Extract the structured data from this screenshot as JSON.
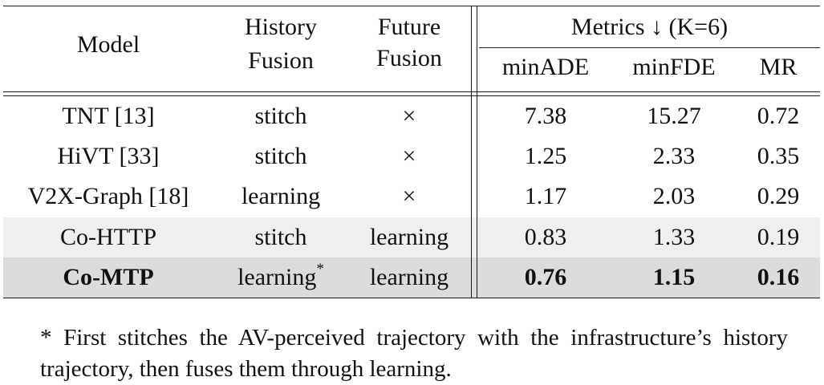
{
  "table": {
    "headers": {
      "model": "Model",
      "history_fusion_line1": "History",
      "history_fusion_line2": "Fusion",
      "future_fusion_line1": "Future",
      "future_fusion_line2": "Fusion",
      "metrics_group": "Metrics ↓ (K=6)",
      "min_ade": "minADE",
      "min_fde": "minFDE",
      "mr": "MR"
    },
    "rows": [
      {
        "model": "TNT [13]",
        "history": "stitch",
        "future": "×",
        "min_ade": "7.38",
        "min_fde": "15.27",
        "mr": "0.72"
      },
      {
        "model": "HiVT [33]",
        "history": "stitch",
        "future": "×",
        "min_ade": "1.25",
        "min_fde": "2.33",
        "mr": "0.35"
      },
      {
        "model": "V2X-Graph [18]",
        "history": "learning",
        "future": "×",
        "min_ade": "1.17",
        "min_fde": "2.03",
        "mr": "0.29"
      },
      {
        "model": "Co-HTTP",
        "history": "stitch",
        "future": "learning",
        "min_ade": "0.83",
        "min_fde": "1.33",
        "mr": "0.19"
      },
      {
        "model": "Co-MTP",
        "history": "learning",
        "history_sup": "*",
        "future": "learning",
        "min_ade": "0.76",
        "min_fde": "1.15",
        "mr": "0.16"
      }
    ],
    "row_shading": [
      "#ffffff",
      "#ffffff",
      "#ffffff",
      "#efefef",
      "#dcdcdc"
    ]
  },
  "footnote": "* First stitches the AV-perceived trajectory with the infrastructure’s history trajectory, then fuses them through learning."
}
